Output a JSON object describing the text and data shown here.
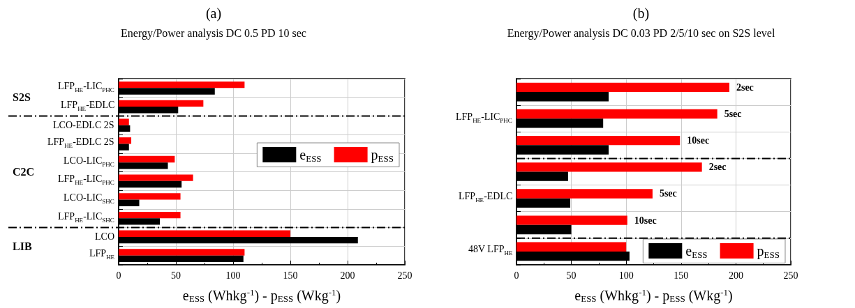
{
  "chart_data": [
    {
      "type": "bar",
      "orientation": "horizontal",
      "title": "(a)",
      "subtitle": "Energy/Power analysis DC 0.5 PD 10 sec",
      "xlabel": "e$_{ESS}$ (Whkg$^{-1}$) - p$_{ESS}$ (Wkg$^{-1}$)",
      "categories": [
        "LFP$_{HE}$-LIC$_{PHC}$",
        "LFP$_{HE}$-EDLC",
        "LCO-EDLC 2S",
        "LFP$_{HE}$-EDLC 2S",
        "LCO-LIC$_{PHC}$",
        "LFP$_{HE}$-LIC$_{PHC}$",
        "LCO-LIC$_{SHC}$",
        "LFP$_{HE}$-LIC$_{SHC}$",
        "LCO",
        "LFP$_{HE}$"
      ],
      "series": [
        {
          "name": "e$_{ESS}$",
          "color": "#000000",
          "values": [
            84,
            52,
            10,
            9,
            43,
            55,
            18,
            36,
            209,
            109
          ]
        },
        {
          "name": "p$_{ESS}$",
          "color": "#ff0000",
          "values": [
            110,
            74,
            9,
            11,
            49,
            65,
            54,
            54,
            150,
            110
          ]
        }
      ],
      "xlim": [
        0,
        250
      ],
      "xticks": [
        0,
        50,
        100,
        150,
        200,
        250
      ],
      "grid": true,
      "legend": "right",
      "annotations": [
        "S2S",
        "C2C",
        "LIB"
      ]
    },
    {
      "type": "bar",
      "orientation": "horizontal",
      "title": "(b)",
      "subtitle": "Energy/Power analysis DC 0.03 PD 2/5/10 sec on S2S level",
      "xlabel": "e$_{ESS}$ (Whkg$^{-1}$) - p$_{ESS}$ (Wkg$^{-1}$)",
      "categories": [
        null,
        "LFP$_{HE}$-LIC$_{PHC}$",
        null,
        null,
        "LFP$_{HE}$-EDLC",
        null,
        "48V LFP$_{HE}$"
      ],
      "series": [
        {
          "name": "e$_{ESS}$",
          "color": "#000000",
          "values": [
            84,
            79,
            84,
            47,
            49,
            50,
            103
          ]
        },
        {
          "name": "p$_{ESS}$",
          "color": "#ff0000",
          "values": [
            194,
            183,
            149,
            169,
            124,
            101,
            100
          ]
        }
      ],
      "annotations": [
        {
          "text": "2sec",
          "x": 194
        },
        {
          "text": "5sec",
          "x": 183
        },
        {
          "text": "10sec",
          "x": 149
        },
        {
          "text": "2sec",
          "x": 169
        },
        {
          "text": "5sec",
          "x": 124
        },
        {
          "text": "10sec",
          "x": 101
        }
      ],
      "xlim": [
        0,
        250
      ],
      "xticks": [
        0,
        50,
        100,
        150,
        200,
        250
      ],
      "grid": true,
      "legend": "bottom right"
    }
  ]
}
